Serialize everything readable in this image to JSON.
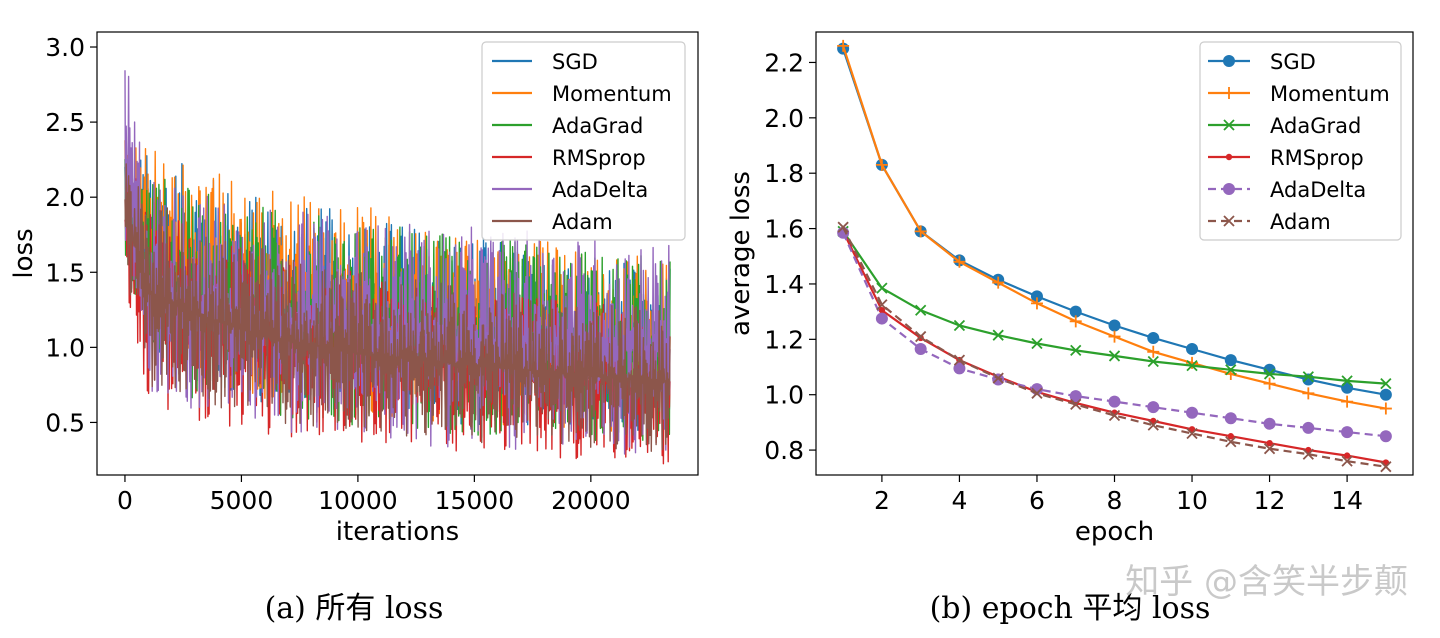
{
  "chart_data": [
    {
      "type": "line",
      "xlabel": "iterations",
      "ylabel": "loss",
      "xlim": [
        -1200,
        24600
      ],
      "ylim": [
        0.15,
        3.1
      ],
      "xticks": [
        0,
        5000,
        10000,
        15000,
        20000
      ],
      "yticks": [
        0.5,
        1.0,
        1.5,
        2.0,
        2.5,
        3.0
      ],
      "xtick_labels": [
        "0",
        "5000",
        "10000",
        "15000",
        "20000"
      ],
      "ytick_labels": [
        "0.5",
        "1.0",
        "1.5",
        "2.0",
        "2.5",
        "3.0"
      ],
      "legend": "top-right",
      "grid": false,
      "caption": "(a) 所有 loss",
      "series": [
        {
          "name": "SGD",
          "color": "#1f77b4",
          "x": [
            0,
            1000,
            3000,
            6000,
            10000,
            15000,
            20000,
            23400
          ],
          "lower": [
            1.75,
            0.95,
            0.78,
            0.62,
            0.55,
            0.48,
            0.42,
            0.4
          ],
          "upper": [
            2.35,
            2.3,
            2.2,
            2.0,
            1.9,
            1.75,
            1.6,
            1.55
          ]
        },
        {
          "name": "Momentum",
          "color": "#ff7f0e",
          "x": [
            0,
            1000,
            3000,
            6000,
            10000,
            15000,
            20000,
            23400
          ],
          "lower": [
            1.75,
            0.95,
            0.78,
            0.62,
            0.55,
            0.48,
            0.42,
            0.4
          ],
          "upper": [
            2.4,
            2.35,
            2.25,
            2.1,
            1.95,
            1.8,
            1.65,
            1.6
          ]
        },
        {
          "name": "AdaGrad",
          "color": "#2ca02c",
          "x": [
            0,
            1000,
            3000,
            6000,
            10000,
            15000,
            20000,
            23400
          ],
          "lower": [
            1.55,
            0.85,
            0.65,
            0.55,
            0.48,
            0.4,
            0.35,
            0.33
          ],
          "upper": [
            2.3,
            2.2,
            2.05,
            1.95,
            1.85,
            1.75,
            1.65,
            1.6
          ]
        },
        {
          "name": "RMSprop",
          "color": "#d62728",
          "x": [
            0,
            1000,
            3000,
            6000,
            10000,
            15000,
            20000,
            23400
          ],
          "lower": [
            1.4,
            0.65,
            0.5,
            0.4,
            0.35,
            0.3,
            0.25,
            0.22
          ],
          "upper": [
            2.3,
            2.0,
            1.8,
            1.6,
            1.5,
            1.4,
            1.3,
            1.25
          ]
        },
        {
          "name": "AdaDelta",
          "color": "#9467bd",
          "x": [
            0,
            1000,
            3000,
            6000,
            10000,
            15000,
            20000,
            23400
          ],
          "lower": [
            1.5,
            0.7,
            0.55,
            0.45,
            0.38,
            0.32,
            0.28,
            0.26
          ],
          "upper": [
            2.95,
            2.2,
            2.05,
            1.95,
            1.85,
            1.8,
            1.75,
            1.7
          ]
        },
        {
          "name": "Adam",
          "color": "#8c564b",
          "x": [
            0,
            1000,
            3000,
            6000,
            10000,
            15000,
            20000,
            23400
          ],
          "lower": [
            1.5,
            0.75,
            0.6,
            0.5,
            0.42,
            0.36,
            0.32,
            0.3
          ],
          "upper": [
            2.3,
            2.0,
            1.85,
            1.65,
            1.5,
            1.4,
            1.3,
            1.25
          ]
        }
      ]
    },
    {
      "type": "line",
      "xlabel": "epoch",
      "ylabel": "average loss",
      "xlim": [
        0.3,
        15.7
      ],
      "ylim": [
        0.71,
        2.31
      ],
      "xticks": [
        2,
        4,
        6,
        8,
        10,
        12,
        14
      ],
      "yticks": [
        0.8,
        1.0,
        1.2,
        1.4,
        1.6,
        1.8,
        2.0,
        2.2
      ],
      "xtick_labels": [
        "2",
        "4",
        "6",
        "8",
        "10",
        "12",
        "14"
      ],
      "ytick_labels": [
        "0.8",
        "1.0",
        "1.2",
        "1.4",
        "1.6",
        "1.8",
        "2.0",
        "2.2"
      ],
      "legend": "top-right",
      "grid": false,
      "caption": "(b) epoch 平均 loss",
      "x": [
        1,
        2,
        3,
        4,
        5,
        6,
        7,
        8,
        9,
        10,
        11,
        12,
        13,
        14,
        15
      ],
      "series": [
        {
          "name": "SGD",
          "color": "#1f77b4",
          "marker": "circle",
          "dash": "solid",
          "values": [
            2.25,
            1.83,
            1.59,
            1.485,
            1.415,
            1.355,
            1.3,
            1.25,
            1.205,
            1.165,
            1.125,
            1.09,
            1.055,
            1.025,
            1.0
          ]
        },
        {
          "name": "Momentum",
          "color": "#ff7f0e",
          "marker": "plus",
          "dash": "solid",
          "values": [
            2.26,
            1.83,
            1.59,
            1.48,
            1.405,
            1.33,
            1.265,
            1.21,
            1.155,
            1.115,
            1.075,
            1.04,
            1.005,
            0.975,
            0.95
          ]
        },
        {
          "name": "AdaGrad",
          "color": "#2ca02c",
          "marker": "x",
          "dash": "solid",
          "values": [
            1.59,
            1.385,
            1.305,
            1.25,
            1.215,
            1.185,
            1.16,
            1.14,
            1.12,
            1.105,
            1.09,
            1.075,
            1.065,
            1.05,
            1.04
          ]
        },
        {
          "name": "RMSprop",
          "color": "#d62728",
          "marker": "dot",
          "dash": "solid",
          "values": [
            1.59,
            1.305,
            1.205,
            1.125,
            1.065,
            1.01,
            0.97,
            0.935,
            0.905,
            0.875,
            0.85,
            0.825,
            0.8,
            0.78,
            0.755
          ]
        },
        {
          "name": "AdaDelta",
          "color": "#9467bd",
          "marker": "circle",
          "dash": "dashed",
          "values": [
            1.585,
            1.275,
            1.165,
            1.095,
            1.055,
            1.02,
            0.995,
            0.975,
            0.955,
            0.935,
            0.915,
            0.895,
            0.88,
            0.865,
            0.85
          ]
        },
        {
          "name": "Adam",
          "color": "#8c564b",
          "marker": "x",
          "dash": "dashed",
          "values": [
            1.605,
            1.325,
            1.21,
            1.125,
            1.06,
            1.005,
            0.965,
            0.925,
            0.89,
            0.86,
            0.83,
            0.805,
            0.785,
            0.76,
            0.74
          ]
        }
      ]
    }
  ],
  "watermark": "知乎 @含笑半步颠"
}
